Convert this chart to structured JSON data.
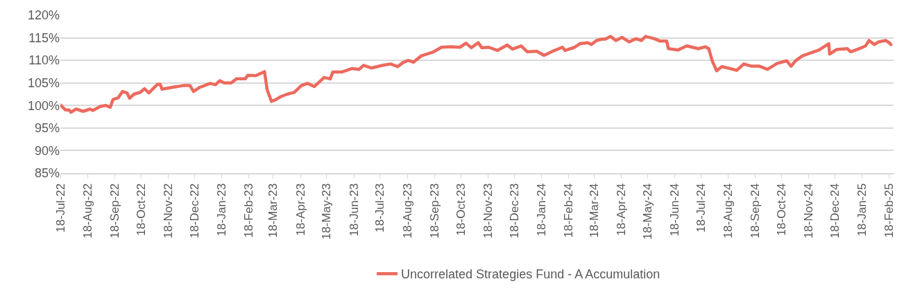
{
  "chart_data": {
    "type": "line",
    "x": [
      "2022-07-18",
      "2022-07-24",
      "2022-07-28",
      "2022-07-30",
      "2022-08-05",
      "2022-08-13",
      "2022-08-21",
      "2022-08-24",
      "2022-09-02",
      "2022-09-08",
      "2022-09-13",
      "2022-09-16",
      "2022-09-22",
      "2022-09-27",
      "2022-10-02",
      "2022-10-05",
      "2022-10-10",
      "2022-10-17",
      "2022-10-22",
      "2022-10-27",
      "2022-11-06",
      "2022-11-09",
      "2022-11-11",
      "2022-11-22",
      "2022-12-05",
      "2022-12-13",
      "2022-12-17",
      "2022-12-24",
      "2023-01-05",
      "2023-01-11",
      "2023-01-16",
      "2023-01-21",
      "2023-01-29",
      "2023-02-04",
      "2023-02-14",
      "2023-02-17",
      "2023-02-26",
      "2023-03-08",
      "2023-03-11",
      "2023-03-16",
      "2023-03-20",
      "2023-03-27",
      "2023-04-03",
      "2023-04-11",
      "2023-04-19",
      "2023-04-26",
      "2023-05-04",
      "2023-05-15",
      "2023-05-22",
      "2023-05-25",
      "2023-06-04",
      "2023-06-16",
      "2023-06-24",
      "2023-06-29",
      "2023-07-08",
      "2023-07-21",
      "2023-07-30",
      "2023-08-07",
      "2023-08-13",
      "2023-08-19",
      "2023-08-25",
      "2023-09-03",
      "2023-09-16",
      "2023-09-26",
      "2023-10-06",
      "2023-10-17",
      "2023-10-24",
      "2023-10-30",
      "2023-11-07",
      "2023-11-11",
      "2023-11-19",
      "2023-11-29",
      "2023-12-10",
      "2023-12-16",
      "2023-12-26",
      "2024-01-02",
      "2024-01-13",
      "2024-01-21",
      "2024-02-02",
      "2024-02-11",
      "2024-02-14",
      "2024-02-25",
      "2024-03-02",
      "2024-03-11",
      "2024-03-15",
      "2024-03-21",
      "2024-03-27",
      "2024-03-31",
      "2024-04-06",
      "2024-04-12",
      "2024-04-19",
      "2024-04-27",
      "2024-05-05",
      "2024-05-11",
      "2024-05-16",
      "2024-05-26",
      "2024-06-01",
      "2024-06-09",
      "2024-06-11",
      "2024-06-22",
      "2024-07-02",
      "2024-07-15",
      "2024-07-23",
      "2024-07-27",
      "2024-07-31",
      "2024-08-05",
      "2024-08-11",
      "2024-08-20",
      "2024-08-28",
      "2024-09-05",
      "2024-09-14",
      "2024-09-23",
      "2024-10-02",
      "2024-10-13",
      "2024-10-24",
      "2024-10-29",
      "2024-11-03",
      "2024-11-11",
      "2024-11-21",
      "2024-11-30",
      "2024-12-11",
      "2024-12-12",
      "2024-12-20",
      "2025-01-01",
      "2025-01-05",
      "2025-01-15",
      "2025-01-22",
      "2025-01-26",
      "2025-02-01",
      "2025-02-06",
      "2025-02-14",
      "2025-02-18",
      "2025-02-20"
    ],
    "series": [
      {
        "name": "Uncorrelated Strategies Fund - A Accumulation",
        "color": "#ec6a5e",
        "values": [
          100.1,
          99.0,
          99.0,
          98.5,
          99.2,
          98.7,
          99.2,
          98.9,
          99.8,
          100.0,
          99.6,
          101.3,
          101.7,
          103.1,
          102.8,
          101.6,
          102.5,
          102.9,
          103.7,
          102.8,
          104.7,
          104.7,
          103.6,
          104.0,
          104.4,
          104.4,
          103.1,
          104.0,
          104.9,
          104.6,
          105.5,
          105.0,
          105.0,
          105.9,
          105.9,
          106.7,
          106.6,
          107.5,
          103.5,
          100.9,
          101.2,
          102.0,
          102.5,
          102.9,
          104.4,
          104.9,
          104.2,
          106.2,
          105.9,
          107.4,
          107.4,
          108.2,
          108.0,
          108.9,
          108.3,
          108.9,
          109.2,
          108.6,
          109.5,
          110.0,
          109.6,
          111.0,
          111.8,
          112.9,
          113.0,
          112.9,
          113.8,
          112.8,
          113.9,
          112.8,
          112.9,
          112.2,
          113.4,
          112.5,
          113.2,
          111.9,
          112.0,
          111.1,
          112.2,
          112.9,
          112.2,
          112.9,
          113.7,
          113.9,
          113.5,
          114.4,
          114.7,
          114.7,
          115.3,
          114.4,
          115.1,
          114.1,
          114.8,
          114.4,
          115.3,
          114.8,
          114.3,
          114.3,
          112.6,
          112.3,
          113.2,
          112.6,
          113.0,
          112.6,
          109.9,
          107.7,
          108.6,
          108.2,
          107.8,
          109.2,
          108.7,
          108.7,
          108.0,
          109.3,
          109.9,
          108.7,
          109.9,
          111.0,
          111.7,
          112.3,
          113.7,
          111.4,
          112.4,
          112.6,
          111.9,
          112.6,
          113.2,
          114.4,
          113.5,
          114.1,
          114.4,
          113.9,
          113.5
        ]
      }
    ],
    "xlim": [
      "2022-07-18",
      "2025-02-23"
    ],
    "xticks": [
      {
        "value": "2022-07-18",
        "label": "18-Jul-22"
      },
      {
        "value": "2022-08-18",
        "label": "18-Aug-22"
      },
      {
        "value": "2022-09-18",
        "label": "18-Sep-22"
      },
      {
        "value": "2022-10-18",
        "label": "18-Oct-22"
      },
      {
        "value": "2022-11-18",
        "label": "18-Nov-22"
      },
      {
        "value": "2022-12-18",
        "label": "18-Dec-22"
      },
      {
        "value": "2023-01-18",
        "label": "18-Jan-23"
      },
      {
        "value": "2023-02-18",
        "label": "18-Feb-23"
      },
      {
        "value": "2023-03-18",
        "label": "18-Mar-23"
      },
      {
        "value": "2023-04-18",
        "label": "18-Apr-23"
      },
      {
        "value": "2023-05-18",
        "label": "18-May-23"
      },
      {
        "value": "2023-06-18",
        "label": "18-Jun-23"
      },
      {
        "value": "2023-07-18",
        "label": "18-Jul-23"
      },
      {
        "value": "2023-08-18",
        "label": "18-Aug-23"
      },
      {
        "value": "2023-09-18",
        "label": "18-Sep-23"
      },
      {
        "value": "2023-10-18",
        "label": "18-Oct-23"
      },
      {
        "value": "2023-11-18",
        "label": "18-Nov-23"
      },
      {
        "value": "2023-12-18",
        "label": "18-Dec-23"
      },
      {
        "value": "2024-01-18",
        "label": "18-Jan-24"
      },
      {
        "value": "2024-02-18",
        "label": "18-Feb-24"
      },
      {
        "value": "2024-03-18",
        "label": "18-Mar-24"
      },
      {
        "value": "2024-04-18",
        "label": "18-Apr-24"
      },
      {
        "value": "2024-05-18",
        "label": "18-May-24"
      },
      {
        "value": "2024-06-18",
        "label": "18-Jun-24"
      },
      {
        "value": "2024-07-18",
        "label": "18-Jul-24"
      },
      {
        "value": "2024-08-18",
        "label": "18-Aug-24"
      },
      {
        "value": "2024-09-18",
        "label": "18-Sep-24"
      },
      {
        "value": "2024-10-18",
        "label": "18-Oct-24"
      },
      {
        "value": "2024-11-18",
        "label": "18-Nov-24"
      },
      {
        "value": "2024-12-18",
        "label": "18-Dec-24"
      },
      {
        "value": "2025-01-18",
        "label": "18-Jan-25"
      },
      {
        "value": "2025-02-18",
        "label": "18-Feb-25"
      }
    ],
    "ylim": [
      85,
      120
    ],
    "yticks": [
      {
        "value": 85,
        "label": "85%"
      },
      {
        "value": 90,
        "label": "90%"
      },
      {
        "value": 95,
        "label": "95%"
      },
      {
        "value": 100,
        "label": "100%"
      },
      {
        "value": 105,
        "label": "105%"
      },
      {
        "value": 110,
        "label": "110%"
      },
      {
        "value": 115,
        "label": "115%"
      },
      {
        "value": 120,
        "label": "120%"
      }
    ],
    "grid": "y",
    "legend": "bottom",
    "marker": "none",
    "line_style": "solid"
  }
}
